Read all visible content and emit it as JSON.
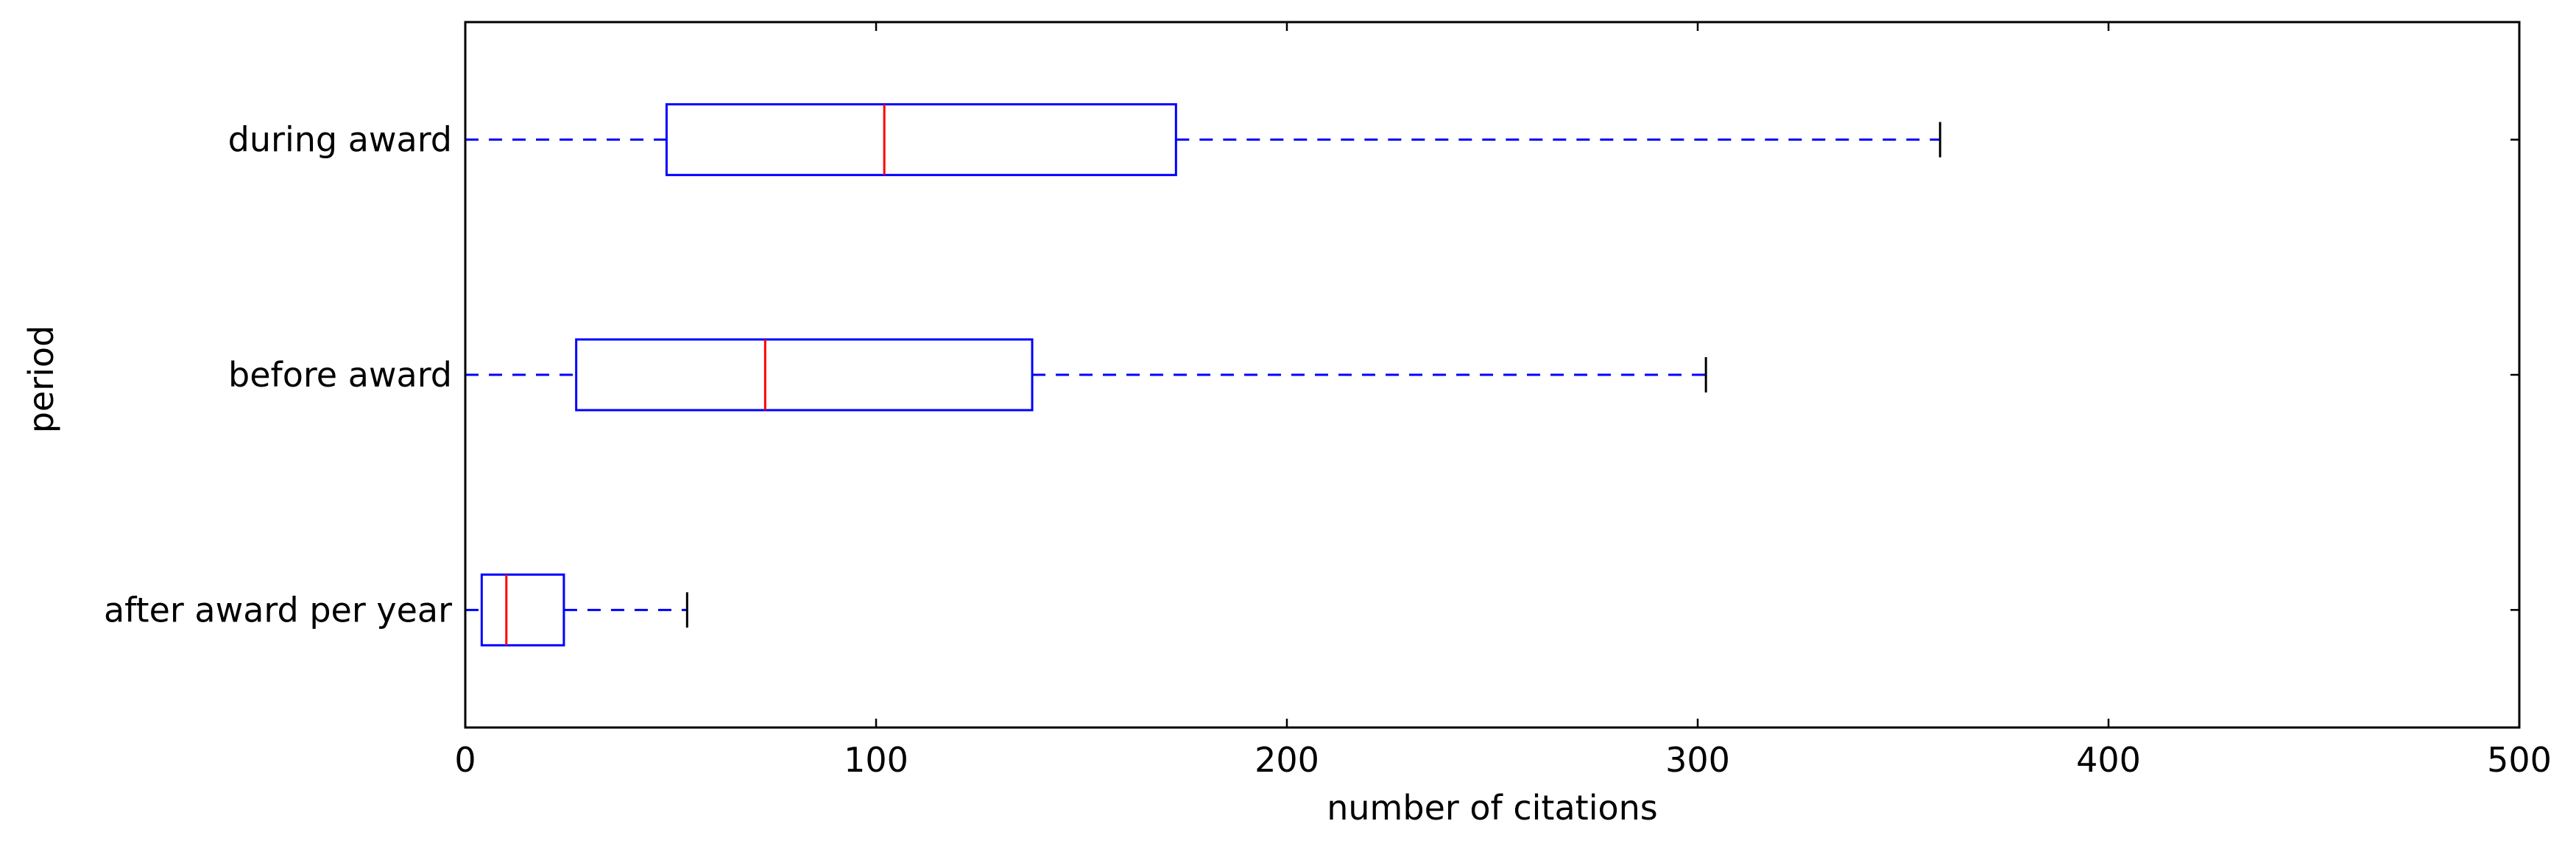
{
  "chart_data": {
    "type": "boxplot",
    "orientation": "horizontal",
    "title": "",
    "xlabel": "number of citations",
    "ylabel": "period",
    "xlim": [
      0,
      500
    ],
    "xticks": [
      0,
      100,
      200,
      300,
      400,
      500
    ],
    "grid": false,
    "colors": {
      "box": "#0000ff",
      "median": "#ff0000",
      "cap": "#000000",
      "axes": "#000000"
    },
    "categories": [
      "during award",
      "before award",
      "after award per year"
    ],
    "boxes": [
      {
        "label": "during award",
        "whisker_low": 0,
        "q1": 49,
        "median": 102,
        "q3": 173,
        "whisker_high": 359
      },
      {
        "label": "before award",
        "whisker_low": 0,
        "q1": 27,
        "median": 73,
        "q3": 138,
        "whisker_high": 302
      },
      {
        "label": "after award per year",
        "whisker_low": 0,
        "q1": 4,
        "median": 10,
        "q3": 24,
        "whisker_high": 54
      }
    ]
  }
}
